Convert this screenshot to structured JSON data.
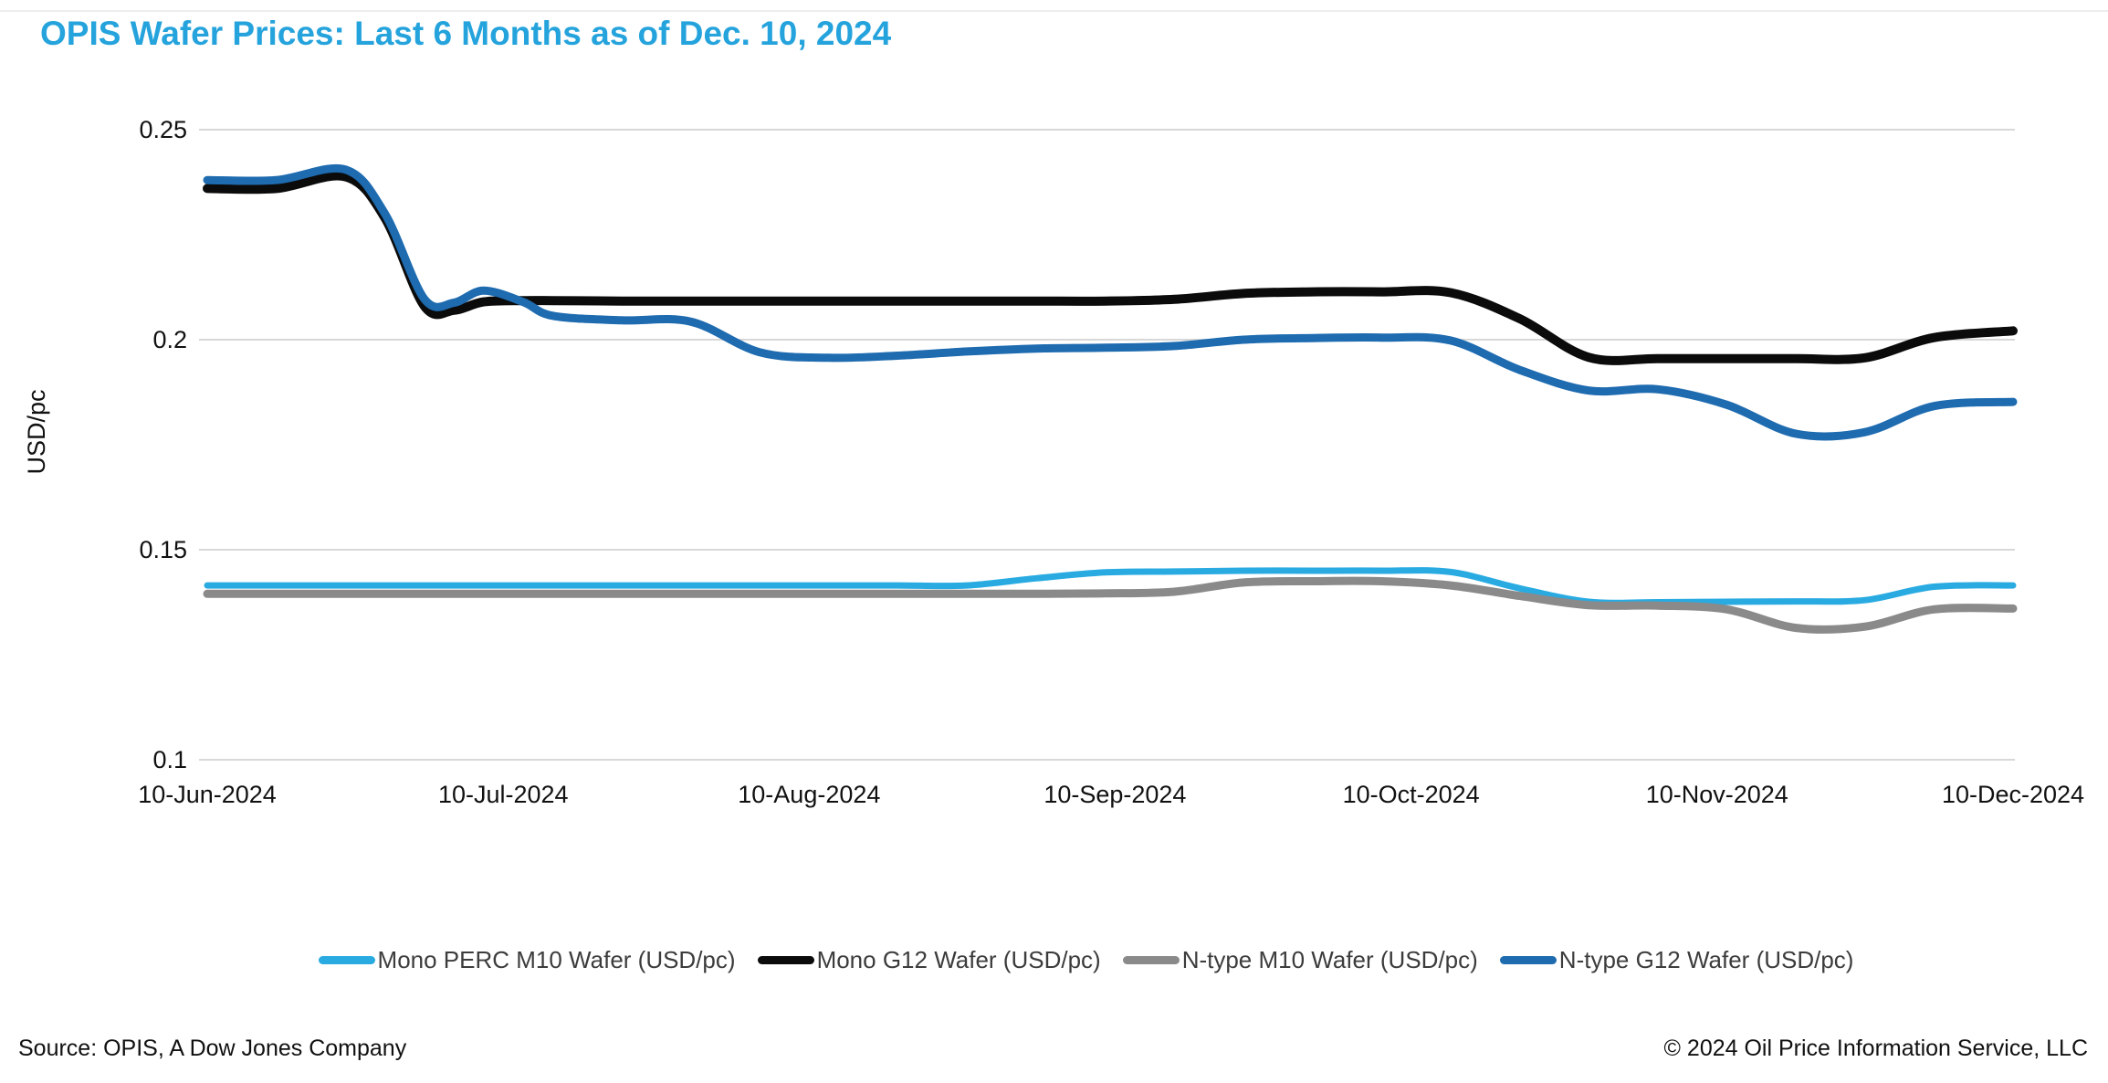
{
  "title": "OPIS Wafer Prices: Last 6 Months as of Dec. 10, 2024",
  "y_axis": {
    "label": "USD/pc"
  },
  "footer": {
    "source": "Source: OPIS, A Dow Jones Company",
    "copyright": "© 2024 Oil Price Information Service, LLC"
  },
  "colors": {
    "title_blue": "#25a3dc",
    "gridline": "#d8d8d8",
    "tick_text": "#111111",
    "legend_text": "#3c3c3c"
  },
  "chart_data": {
    "type": "line",
    "title": "OPIS Wafer Prices: Last 6 Months as of Dec. 10, 2024",
    "xlabel": "",
    "ylabel": "USD/pc",
    "ylim": [
      0.1,
      0.25
    ],
    "grid": "horizontal",
    "legend_position": "bottom",
    "y_ticks": [
      {
        "value": 0.25,
        "label": "0.25"
      },
      {
        "value": 0.2,
        "label": "0.2"
      },
      {
        "value": 0.15,
        "label": "0.15"
      },
      {
        "value": 0.1,
        "label": "0.1"
      }
    ],
    "x_ticks": [
      {
        "day": 0,
        "label": "10-Jun-2024"
      },
      {
        "day": 30,
        "label": "10-Jul-2024"
      },
      {
        "day": 61,
        "label": "10-Aug-2024"
      },
      {
        "day": 92,
        "label": "10-Sep-2024"
      },
      {
        "day": 122,
        "label": "10-Oct-2024"
      },
      {
        "day": 153,
        "label": "10-Nov-2024"
      },
      {
        "day": 183,
        "label": "10-Dec-2024"
      }
    ],
    "x_days": [
      0,
      7,
      14,
      18,
      22,
      25,
      28,
      32,
      35,
      42,
      49,
      56,
      63,
      70,
      77,
      84,
      91,
      98,
      105,
      112,
      119,
      126,
      133,
      140,
      147,
      154,
      161,
      168,
      175,
      183
    ],
    "series": [
      {
        "name": "Mono PERC M10 Wafer (USD/pc)",
        "color": "#29abe2",
        "width": 7,
        "values": [
          0.1415,
          0.1415,
          0.1415,
          0.1415,
          0.1415,
          0.1415,
          0.1415,
          0.1415,
          0.1415,
          0.1415,
          0.1415,
          0.1415,
          0.1415,
          0.1415,
          0.1415,
          0.1432,
          0.1446,
          0.1448,
          0.145,
          0.145,
          0.145,
          0.1447,
          0.1408,
          0.1376,
          0.1375,
          0.1376,
          0.1377,
          0.138,
          0.1412,
          0.1415
        ]
      },
      {
        "name": "Mono G12 Wafer (USD/pc)",
        "color": "#0b0b0b",
        "width": 10,
        "values": [
          0.236,
          0.236,
          0.2388,
          0.229,
          0.208,
          0.207,
          0.209,
          0.2093,
          0.2093,
          0.2092,
          0.2092,
          0.2092,
          0.2092,
          0.2092,
          0.2092,
          0.2092,
          0.2092,
          0.2096,
          0.211,
          0.2114,
          0.2114,
          0.2112,
          0.205,
          0.1958,
          0.1955,
          0.1955,
          0.1955,
          0.1957,
          0.2005,
          0.2021
        ]
      },
      {
        "name": "N-type M10 Wafer (USD/pc)",
        "color": "#8a8a8a",
        "width": 9,
        "values": [
          0.1395,
          0.1395,
          0.1395,
          0.1395,
          0.1395,
          0.1395,
          0.1395,
          0.1395,
          0.1395,
          0.1395,
          0.1395,
          0.1395,
          0.1395,
          0.1395,
          0.1395,
          0.1395,
          0.1396,
          0.14,
          0.1422,
          0.1425,
          0.1425,
          0.1415,
          0.139,
          0.1368,
          0.1367,
          0.1358,
          0.1314,
          0.1317,
          0.1358,
          0.136
        ]
      },
      {
        "name": "N-type G12 Wafer (USD/pc)",
        "color": "#1e6bb0",
        "width": 9,
        "values": [
          0.238,
          0.238,
          0.2405,
          0.23,
          0.2097,
          0.2088,
          0.2117,
          0.209,
          0.2057,
          0.2046,
          0.2043,
          0.197,
          0.1957,
          0.1962,
          0.1972,
          0.1979,
          0.1981,
          0.1985,
          0.2,
          0.2004,
          0.2005,
          0.1998,
          0.1928,
          0.1879,
          0.1882,
          0.1845,
          0.1776,
          0.178,
          0.1842,
          0.1852
        ]
      }
    ]
  }
}
